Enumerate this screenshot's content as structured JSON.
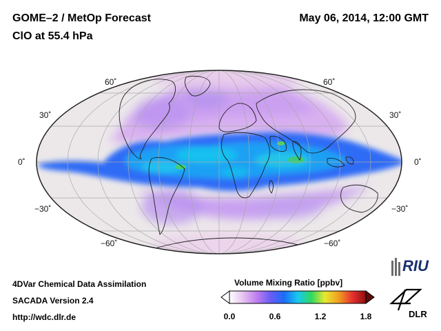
{
  "header": {
    "title": "GOME–2 / MetOp Forecast",
    "subtitle": "ClO at 55.4 hPa",
    "datetime": "May 06, 2014, 12:00 GMT"
  },
  "map": {
    "projection": "Mollweide",
    "lat_labels_left": [
      "60˚",
      "30˚",
      "0˚",
      "−30˚",
      "−60˚"
    ],
    "lat_labels_right": [
      "60˚",
      "30˚",
      "0˚",
      "−30˚",
      "−60˚"
    ],
    "colors": {
      "background_fill": "#ece8ea",
      "polar_pink": "#e8c8e8",
      "midlat_violet": "#c8a0f0",
      "tropic_blue": "#3a6cf8",
      "core_cyan": "#18c8f0",
      "hotspot_green": "#40c870",
      "coastline": "#202020",
      "graticule": "#a8a8a8"
    }
  },
  "footer": {
    "line1": "4DVar Chemical Data Assimilation",
    "line2": "SACADA Version 2.4",
    "line3": "http://wdc.dlr.de"
  },
  "colorbar": {
    "title": "Volume Mixing Ratio [ppbv]",
    "ticks": [
      "0.0",
      "0.6",
      "1.2",
      "1.8"
    ],
    "range": [
      0.0,
      1.8
    ],
    "colors": [
      "#ffffff",
      "#e6c3f0",
      "#c07ef0",
      "#6a5cf5",
      "#1c6cf8",
      "#18c8f0",
      "#30d860",
      "#e8e830",
      "#f0a020",
      "#e83030",
      "#901010"
    ]
  },
  "logos": {
    "riu": "RIU",
    "dlr": "DLR",
    "riu_icon": "cathedral-icon",
    "dlr_icon": "dlr-wing-icon"
  }
}
